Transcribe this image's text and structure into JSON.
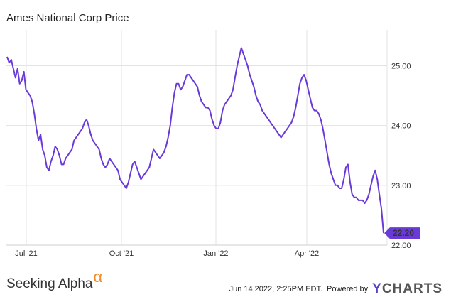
{
  "chart_data": {
    "type": "line",
    "title": "Ames National Corp Price",
    "x_ticks": [
      "Jul '21",
      "Oct '21",
      "Jan '22",
      "Apr '22"
    ],
    "y_ticks": [
      "25.00",
      "24.00",
      "23.00",
      "22.00"
    ],
    "ylim": [
      22.0,
      25.6
    ],
    "grid": true,
    "line_color": "#6a3ad8",
    "last_value_label": "22.20",
    "series": [
      {
        "values": [
          25.15,
          25.05,
          25.1,
          24.95,
          24.8,
          24.95,
          24.7,
          24.75,
          24.9,
          24.6,
          24.55,
          24.5,
          24.4,
          24.2,
          23.95,
          23.75,
          23.85,
          23.6,
          23.5,
          23.3,
          23.25,
          23.4,
          23.5,
          23.65,
          23.6,
          23.5,
          23.35,
          23.35,
          23.45,
          23.5,
          23.55,
          23.6,
          23.75,
          23.8,
          23.85,
          23.9,
          23.95,
          24.05,
          24.1,
          24.0,
          23.85,
          23.75,
          23.7,
          23.65,
          23.6,
          23.45,
          23.35,
          23.3,
          23.35,
          23.45,
          23.4,
          23.35,
          23.3,
          23.25,
          23.1,
          23.05,
          23.0,
          22.95,
          23.05,
          23.2,
          23.35,
          23.4,
          23.3,
          23.2,
          23.1,
          23.15,
          23.2,
          23.25,
          23.3,
          23.45,
          23.6,
          23.55,
          23.5,
          23.45,
          23.5,
          23.55,
          23.65,
          23.8,
          24.0,
          24.3,
          24.55,
          24.7,
          24.7,
          24.6,
          24.65,
          24.75,
          24.85,
          24.85,
          24.8,
          24.75,
          24.7,
          24.65,
          24.5,
          24.4,
          24.35,
          24.3,
          24.3,
          24.25,
          24.1,
          24.0,
          23.95,
          23.95,
          24.05,
          24.25,
          24.35,
          24.4,
          24.45,
          24.5,
          24.6,
          24.8,
          25.0,
          25.15,
          25.3,
          25.2,
          25.1,
          25.0,
          24.85,
          24.75,
          24.65,
          24.5,
          24.4,
          24.35,
          24.25,
          24.2,
          24.15,
          24.1,
          24.05,
          24.0,
          23.95,
          23.9,
          23.85,
          23.8,
          23.85,
          23.9,
          23.95,
          24.0,
          24.05,
          24.15,
          24.3,
          24.5,
          24.7,
          24.8,
          24.85,
          24.75,
          24.6,
          24.45,
          24.3,
          24.25,
          24.25,
          24.2,
          24.1,
          23.95,
          23.75,
          23.55,
          23.35,
          23.2,
          23.1,
          23.0,
          23.0,
          22.95,
          22.95,
          23.1,
          23.3,
          23.35,
          23.05,
          22.85,
          22.8,
          22.8,
          22.75,
          22.75,
          22.75,
          22.7,
          22.75,
          22.85,
          23.0,
          23.15,
          23.25,
          23.1,
          22.85,
          22.6,
          22.2
        ]
      }
    ]
  }
}
